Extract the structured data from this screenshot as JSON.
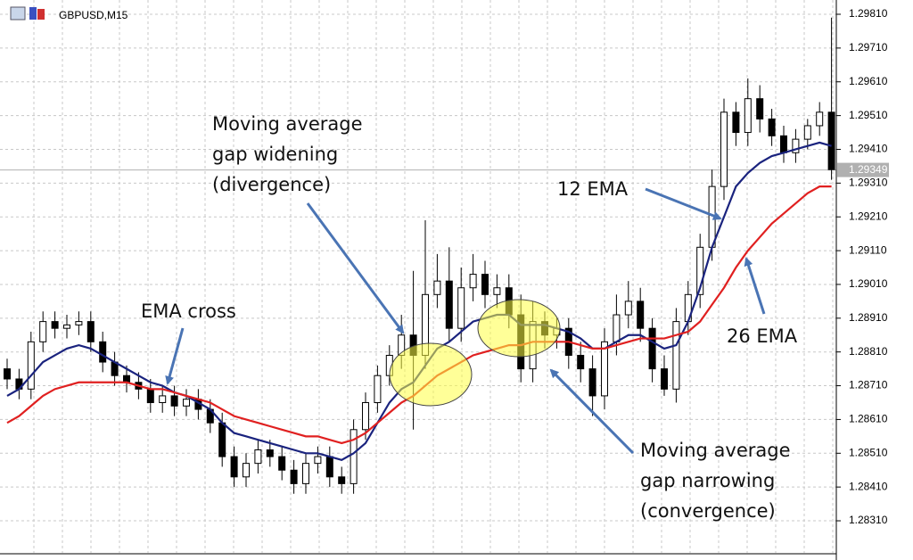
{
  "chart_data": {
    "type": "candlestick",
    "title": "GBPUSD,M15",
    "open": [
      1.2876,
      1.2873,
      1.287,
      1.2884,
      1.289,
      1.2888,
      1.2889,
      1.289,
      1.2884,
      1.2878,
      1.2874,
      1.2872,
      1.287,
      1.2866,
      1.2868,
      1.2865,
      1.2867,
      1.2864,
      1.286,
      1.285,
      1.2844,
      1.2848,
      1.2852,
      1.285,
      1.2846,
      1.2842,
      1.2848,
      1.285,
      1.2844,
      1.2842,
      1.2858,
      1.2866,
      1.2874,
      1.288,
      1.2886,
      1.288,
      1.2898,
      1.2902,
      1.2888,
      1.29,
      1.2904,
      1.2898,
      1.29,
      1.2892,
      1.2876,
      1.289,
      1.2886,
      1.2888,
      1.288,
      1.2876,
      1.2868,
      1.2884,
      1.2892,
      1.2896,
      1.2888,
      1.2876,
      1.287,
      1.289,
      1.2898,
      1.2912,
      1.293,
      1.2952,
      1.2946,
      1.2956,
      1.295,
      1.2945,
      1.294,
      1.2944,
      1.2948,
      1.2952
    ],
    "high": [
      1.2879,
      1.2876,
      1.2887,
      1.2893,
      1.2893,
      1.2892,
      1.2893,
      1.2893,
      1.2887,
      1.2881,
      1.2877,
      1.2875,
      1.2873,
      1.2871,
      1.2871,
      1.287,
      1.287,
      1.2867,
      1.2863,
      1.2853,
      1.2851,
      1.2855,
      1.2855,
      1.2853,
      1.2849,
      1.2851,
      1.2853,
      1.2853,
      1.2847,
      1.2861,
      1.2869,
      1.2877,
      1.2883,
      1.2892,
      1.2905,
      1.292,
      1.291,
      1.2912,
      1.2906,
      1.291,
      1.2908,
      1.2904,
      1.2904,
      1.2898,
      1.2896,
      1.2893,
      1.2891,
      1.2891,
      1.2884,
      1.288,
      1.2888,
      1.2898,
      1.2902,
      1.29,
      1.2891,
      1.288,
      1.2894,
      1.2902,
      1.2916,
      1.2935,
      1.2956,
      1.2955,
      1.2962,
      1.296,
      1.2953,
      1.2948,
      1.2947,
      1.295,
      1.2955,
      1.298
    ],
    "low": [
      1.287,
      1.2867,
      1.2867,
      1.2881,
      1.2885,
      1.2885,
      1.2886,
      1.2881,
      1.2875,
      1.2871,
      1.2869,
      1.2867,
      1.2863,
      1.2863,
      1.2862,
      1.2862,
      1.2861,
      1.2857,
      1.2847,
      1.2841,
      1.2841,
      1.2845,
      1.2847,
      1.2843,
      1.2839,
      1.2839,
      1.2845,
      1.2841,
      1.2839,
      1.2839,
      1.2855,
      1.2863,
      1.2871,
      1.2876,
      1.2858,
      1.2876,
      1.2894,
      1.2884,
      1.2884,
      1.2896,
      1.2894,
      1.2894,
      1.2888,
      1.2872,
      1.2872,
      1.2882,
      1.2882,
      1.2876,
      1.2872,
      1.2862,
      1.2864,
      1.288,
      1.2888,
      1.2884,
      1.2872,
      1.2868,
      1.2866,
      1.2886,
      1.2894,
      1.2908,
      1.2926,
      1.2942,
      1.2942,
      1.2946,
      1.2942,
      1.2937,
      1.2937,
      1.2941,
      1.2945,
      1.2932
    ],
    "close": [
      1.2873,
      1.287,
      1.2884,
      1.289,
      1.2888,
      1.2889,
      1.289,
      1.2884,
      1.2878,
      1.2874,
      1.2872,
      1.287,
      1.2866,
      1.2868,
      1.2865,
      1.2867,
      1.2864,
      1.286,
      1.285,
      1.2844,
      1.2848,
      1.2852,
      1.285,
      1.2846,
      1.2842,
      1.2848,
      1.285,
      1.2844,
      1.2842,
      1.2858,
      1.2866,
      1.2874,
      1.288,
      1.2886,
      1.288,
      1.2898,
      1.2902,
      1.2888,
      1.29,
      1.2904,
      1.2898,
      1.29,
      1.2892,
      1.2876,
      1.289,
      1.2886,
      1.2888,
      1.288,
      1.2876,
      1.2868,
      1.2884,
      1.2892,
      1.2896,
      1.2888,
      1.2876,
      1.287,
      1.289,
      1.2898,
      1.2912,
      1.293,
      1.2952,
      1.2946,
      1.2956,
      1.295,
      1.2945,
      1.294,
      1.2944,
      1.2948,
      1.2952,
      1.2935
    ],
    "series": [
      {
        "name": "12 EMA",
        "color": "#1a237e",
        "values": [
          1.2868,
          1.287,
          1.2874,
          1.2878,
          1.288,
          1.2882,
          1.2883,
          1.2882,
          1.288,
          1.2878,
          1.2876,
          1.2874,
          1.2872,
          1.2871,
          1.2869,
          1.2868,
          1.2866,
          1.2864,
          1.286,
          1.2857,
          1.2856,
          1.2855,
          1.2854,
          1.2853,
          1.2852,
          1.2851,
          1.2851,
          1.285,
          1.2849,
          1.2851,
          1.2854,
          1.286,
          1.2866,
          1.287,
          1.2872,
          1.2877,
          1.2882,
          1.2884,
          1.2887,
          1.289,
          1.2891,
          1.2892,
          1.2892,
          1.2889,
          1.2889,
          1.2889,
          1.2888,
          1.2887,
          1.2885,
          1.2882,
          1.2882,
          1.2884,
          1.2886,
          1.2886,
          1.2884,
          1.2882,
          1.2883,
          1.289,
          1.29,
          1.2912,
          1.2921,
          1.293,
          1.2934,
          1.2937,
          1.2939,
          1.294,
          1.2941,
          1.2942,
          1.2943,
          1.2942
        ]
      },
      {
        "name": "26 EMA",
        "color": "#e02020",
        "values": [
          1.286,
          1.2862,
          1.2865,
          1.2868,
          1.287,
          1.2871,
          1.2872,
          1.2872,
          1.2872,
          1.2872,
          1.2872,
          1.2871,
          1.287,
          1.287,
          1.2869,
          1.2868,
          1.2867,
          1.2866,
          1.2864,
          1.2862,
          1.2861,
          1.286,
          1.2859,
          1.2858,
          1.2857,
          1.2856,
          1.2856,
          1.2855,
          1.2854,
          1.2855,
          1.2857,
          1.286,
          1.2863,
          1.2866,
          1.2868,
          1.2871,
          1.2874,
          1.2876,
          1.2878,
          1.288,
          1.2881,
          1.2882,
          1.2883,
          1.2883,
          1.2884,
          1.2884,
          1.2884,
          1.2884,
          1.2883,
          1.2882,
          1.2882,
          1.2883,
          1.2884,
          1.2885,
          1.2885,
          1.2885,
          1.2886,
          1.2887,
          1.289,
          1.2895,
          1.29,
          1.2906,
          1.2911,
          1.2915,
          1.2919,
          1.2922,
          1.2925,
          1.2928,
          1.293,
          1.293
        ]
      }
    ],
    "last_price": 1.29349,
    "ylim": [
      1.28215,
      1.29847
    ],
    "yticks": [
      {
        "value": 1.2831,
        "label": "1.28310"
      },
      {
        "value": 1.2841,
        "label": "1.28410"
      },
      {
        "value": 1.2851,
        "label": "1.28510"
      },
      {
        "value": 1.2861,
        "label": "1.28610"
      },
      {
        "value": 1.2871,
        "label": "1.28710"
      },
      {
        "value": 1.2881,
        "label": "1.28810"
      },
      {
        "value": 1.2891,
        "label": "1.28910"
      },
      {
        "value": 1.2901,
        "label": "1.29010"
      },
      {
        "value": 1.2911,
        "label": "1.29110"
      },
      {
        "value": 1.2921,
        "label": "1.29210"
      },
      {
        "value": 1.2931,
        "label": "1.29310"
      },
      {
        "value": 1.2941,
        "label": "1.29410"
      },
      {
        "value": 1.2951,
        "label": "1.29510"
      },
      {
        "value": 1.2961,
        "label": "1.29610"
      },
      {
        "value": 1.2971,
        "label": "1.29710"
      },
      {
        "value": 1.2981,
        "label": "1.29810"
      }
    ],
    "grid": true,
    "annotations": [
      {
        "lines": [
          "Moving average",
          "gap widening",
          "(divergence)"
        ]
      },
      {
        "lines": [
          "EMA cross"
        ]
      },
      {
        "lines": [
          "Moving average",
          "gap narrowing",
          "(convergence)"
        ]
      }
    ]
  }
}
